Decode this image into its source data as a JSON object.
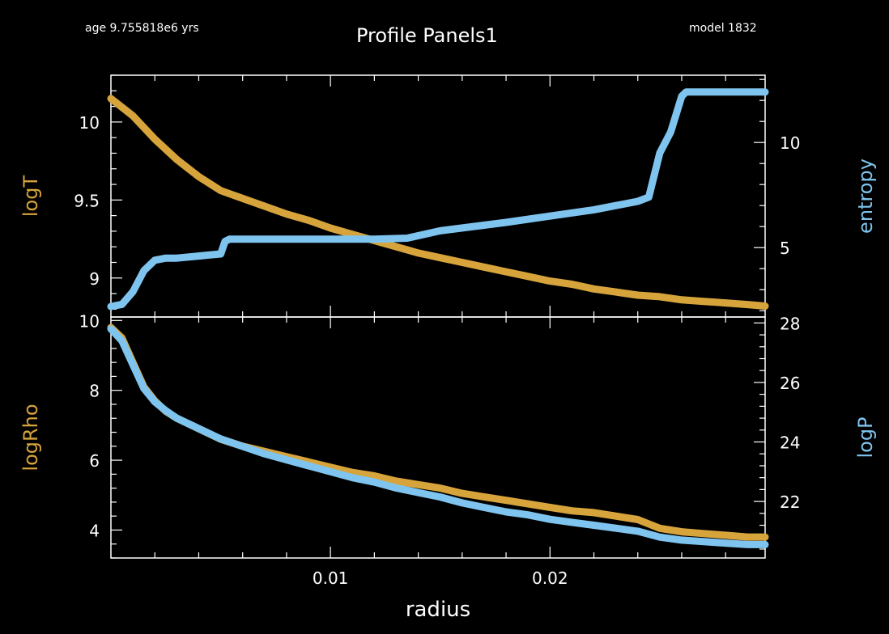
{
  "header": {
    "age": "age 9.755818e6 yrs",
    "title": "Profile Panels1",
    "model": "model 1832"
  },
  "colors": {
    "background": "#000000",
    "axes": "#ffffff",
    "left_series": "#d7a43c",
    "right_series": "#7ec4ee"
  },
  "chart_data": [
    {
      "type": "line",
      "panel": "top",
      "xlabel": "radius",
      "xlim": [
        0,
        0.0298
      ],
      "x_ticks": [
        0.01,
        0.02
      ],
      "x_tick_labels": [
        "0.01",
        "0.02"
      ],
      "ylabel_left": "logT",
      "ylim_left": [
        8.75,
        10.3
      ],
      "y_ticks_left": [
        9,
        9.5,
        10
      ],
      "y_tick_labels_left": [
        "9",
        "9.5",
        "10"
      ],
      "ylabel_right": "entropy",
      "ylim_right": [
        1.7,
        13.2
      ],
      "y_ticks_right": [
        5,
        10
      ],
      "y_tick_labels_right": [
        "5",
        "10"
      ],
      "series": [
        {
          "name": "logT",
          "axis": "left",
          "x": [
            0,
            0.001,
            0.002,
            0.003,
            0.004,
            0.005,
            0.006,
            0.007,
            0.008,
            0.009,
            0.01,
            0.011,
            0.012,
            0.013,
            0.014,
            0.015,
            0.016,
            0.017,
            0.018,
            0.019,
            0.02,
            0.021,
            0.022,
            0.023,
            0.024,
            0.025,
            0.026,
            0.027,
            0.028,
            0.029,
            0.0298
          ],
          "values": [
            10.15,
            10.04,
            9.89,
            9.76,
            9.65,
            9.56,
            9.51,
            9.46,
            9.41,
            9.37,
            9.32,
            9.28,
            9.24,
            9.2,
            9.16,
            9.13,
            9.1,
            9.07,
            9.04,
            9.01,
            8.98,
            8.96,
            8.93,
            8.91,
            8.89,
            8.88,
            8.86,
            8.85,
            8.84,
            8.83,
            8.82
          ]
        },
        {
          "name": "entropy",
          "axis": "right",
          "x": [
            0,
            0.0005,
            0.001,
            0.0015,
            0.002,
            0.0025,
            0.003,
            0.004,
            0.005,
            0.0052,
            0.0054,
            0.006,
            0.008,
            0.01,
            0.012,
            0.0135,
            0.015,
            0.018,
            0.02,
            0.022,
            0.023,
            0.024,
            0.0245,
            0.025,
            0.0255,
            0.026,
            0.0262,
            0.027,
            0.028,
            0.029,
            0.0298
          ],
          "values": [
            2.2,
            2.3,
            2.9,
            3.9,
            4.4,
            4.5,
            4.5,
            4.6,
            4.7,
            5.3,
            5.4,
            5.4,
            5.4,
            5.4,
            5.4,
            5.45,
            5.8,
            6.2,
            6.5,
            6.8,
            7.0,
            7.2,
            7.4,
            9.5,
            10.5,
            12.2,
            12.4,
            12.4,
            12.4,
            12.4,
            12.4
          ]
        }
      ]
    },
    {
      "type": "line",
      "panel": "bottom",
      "xlabel": "radius",
      "xlim": [
        0,
        0.0298
      ],
      "x_ticks": [
        0.01,
        0.02
      ],
      "x_tick_labels": [
        "0.01",
        "0.02"
      ],
      "ylabel_left": "logRho",
      "ylim_left": [
        3.2,
        10.1
      ],
      "y_ticks_left": [
        4,
        6,
        8,
        10
      ],
      "y_tick_labels_left": [
        "4",
        "6",
        "8",
        "10"
      ],
      "ylabel_right": "logP",
      "ylim_right": [
        20.1,
        28.2
      ],
      "y_ticks_right": [
        22,
        24,
        26,
        28
      ],
      "y_tick_labels_right": [
        "22",
        "24",
        "26",
        "28"
      ],
      "series": [
        {
          "name": "logRho",
          "axis": "left",
          "x": [
            0,
            0.0005,
            0.001,
            0.0015,
            0.002,
            0.0025,
            0.003,
            0.004,
            0.005,
            0.006,
            0.007,
            0.008,
            0.009,
            0.01,
            0.011,
            0.012,
            0.013,
            0.014,
            0.015,
            0.016,
            0.017,
            0.018,
            0.019,
            0.02,
            0.021,
            0.022,
            0.023,
            0.024,
            0.025,
            0.026,
            0.027,
            0.028,
            0.029,
            0.0298
          ],
          "values": [
            9.8,
            9.5,
            8.8,
            8.1,
            7.7,
            7.4,
            7.2,
            6.9,
            6.6,
            6.4,
            6.25,
            6.1,
            5.95,
            5.8,
            5.65,
            5.55,
            5.4,
            5.3,
            5.2,
            5.05,
            4.95,
            4.85,
            4.75,
            4.65,
            4.55,
            4.5,
            4.4,
            4.3,
            4.05,
            3.95,
            3.9,
            3.85,
            3.8,
            3.8
          ]
        },
        {
          "name": "logP",
          "axis": "right",
          "x": [
            0,
            0.0005,
            0.001,
            0.0015,
            0.002,
            0.0025,
            0.003,
            0.004,
            0.005,
            0.006,
            0.007,
            0.008,
            0.009,
            0.01,
            0.011,
            0.012,
            0.013,
            0.014,
            0.015,
            0.016,
            0.017,
            0.018,
            0.019,
            0.02,
            0.021,
            0.022,
            0.023,
            0.024,
            0.025,
            0.026,
            0.027,
            0.028,
            0.029,
            0.0298
          ],
          "values": [
            27.8,
            27.4,
            26.6,
            25.8,
            25.35,
            25.05,
            24.8,
            24.45,
            24.1,
            23.85,
            23.6,
            23.4,
            23.2,
            23.0,
            22.8,
            22.65,
            22.45,
            22.3,
            22.15,
            21.95,
            21.8,
            21.65,
            21.55,
            21.4,
            21.3,
            21.2,
            21.1,
            21.0,
            20.8,
            20.7,
            20.65,
            20.6,
            20.55,
            20.55
          ]
        }
      ]
    }
  ]
}
